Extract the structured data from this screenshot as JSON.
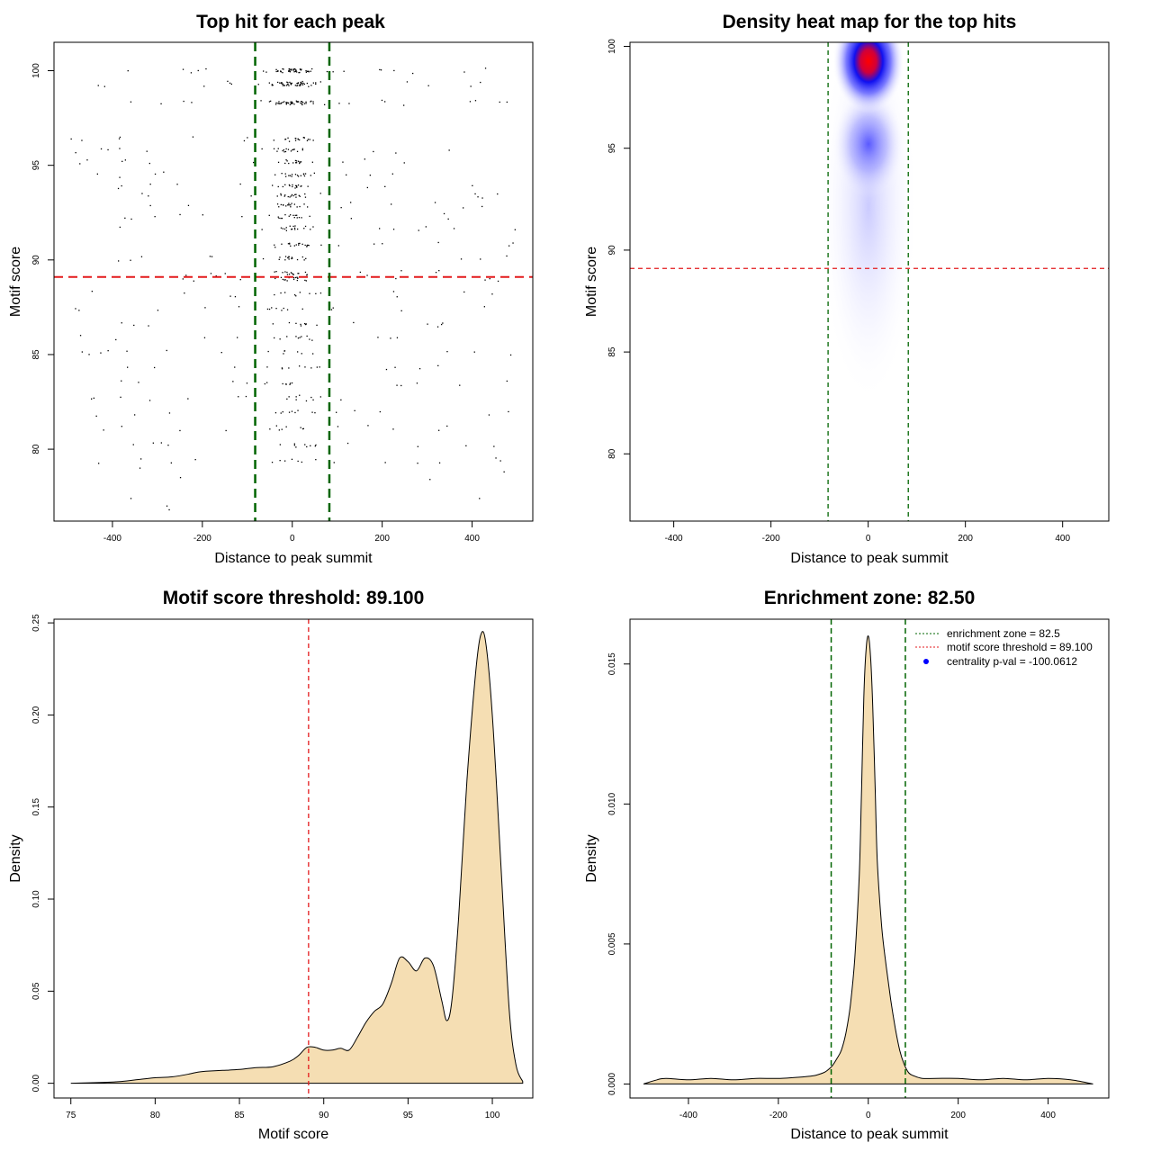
{
  "colors": {
    "threshold_line": "#e31a1c",
    "zone_line": "#006400",
    "density_fill": "#f5deb3",
    "heat_low": "#ffffff",
    "heat_mid": "#0000ff",
    "heat_high": "#ff0000",
    "point_color": "#000000",
    "legend_point": "#0000ff"
  },
  "chart_data": [
    {
      "id": "scatter",
      "type": "scatter",
      "title": "Top hit for each peak",
      "xlabel": "Distance to peak summit",
      "ylabel": "Motif score",
      "xlim": [
        -530,
        535
      ],
      "ylim": [
        76.2,
        101.5
      ],
      "xticks": [
        -400,
        -200,
        0,
        200,
        400
      ],
      "yticks": [
        80,
        85,
        90,
        95,
        100
      ],
      "hline": 89.1,
      "vlines": [
        -82.5,
        82.5
      ],
      "levels": [
        100,
        99.3,
        98.3,
        96.4,
        95.8,
        95.2,
        94.5,
        93.9,
        93.4,
        92.9,
        92.3,
        91.7,
        90.8,
        90.1,
        89.3,
        89.0,
        88.2,
        87.4,
        86.6,
        85.9,
        85.1,
        84.3,
        83.5,
        82.7,
        81.9,
        81.1,
        80.2,
        79.4
      ],
      "grid": false
    },
    {
      "id": "heatmap",
      "type": "heatmap",
      "title": "Density heat map for the top hits",
      "xlabel": "Distance to peak summit",
      "ylabel": "Motif score",
      "xlim": [
        -490,
        495
      ],
      "ylim": [
        76.7,
        100.2
      ],
      "xticks": [
        -400,
        -200,
        0,
        200,
        400
      ],
      "yticks": [
        80,
        85,
        90,
        95,
        100
      ],
      "hline": 89.1,
      "vlines": [
        -82.5,
        82.5
      ],
      "grid": false
    },
    {
      "id": "score_density",
      "type": "area",
      "title": "Motif score threshold: 89.100",
      "xlabel": "Motif score",
      "ylabel": "Density",
      "xlim": [
        74,
        102.4
      ],
      "ylim": [
        -0.008,
        0.252
      ],
      "xticks": [
        75,
        80,
        85,
        90,
        95,
        100
      ],
      "yticks": [
        0.0,
        0.05,
        0.1,
        0.15,
        0.2,
        0.25
      ],
      "ytick_labels": [
        "0.00",
        "0.05",
        "0.10",
        "0.15",
        "0.20",
        "0.25"
      ],
      "vline": 89.1,
      "x": [
        75,
        77,
        78,
        79,
        80,
        81,
        82,
        82.5,
        83,
        84,
        85,
        86,
        87,
        88,
        88.5,
        89,
        89.5,
        90,
        90.5,
        91,
        91.5,
        92,
        92.5,
        93,
        93.5,
        94,
        94.5,
        95,
        95.5,
        96,
        96.5,
        97,
        97.3,
        97.6,
        98,
        98.5,
        99,
        99.3,
        99.6,
        100,
        100.5,
        101,
        101.4,
        101.8
      ],
      "y": [
        0,
        0.0005,
        0.001,
        0.002,
        0.003,
        0.0035,
        0.005,
        0.006,
        0.0065,
        0.007,
        0.0075,
        0.0085,
        0.009,
        0.012,
        0.015,
        0.0195,
        0.0195,
        0.018,
        0.018,
        0.019,
        0.018,
        0.025,
        0.033,
        0.039,
        0.043,
        0.054,
        0.068,
        0.066,
        0.061,
        0.068,
        0.064,
        0.045,
        0.034,
        0.045,
        0.09,
        0.165,
        0.222,
        0.243,
        0.24,
        0.2,
        0.12,
        0.04,
        0.01,
        0.001
      ],
      "grid": false
    },
    {
      "id": "distance_density",
      "type": "area",
      "title": "Enrichment zone: 82.50",
      "xlabel": "Distance to peak summit",
      "ylabel": "Density",
      "xlim": [
        -530,
        535
      ],
      "ylim": [
        -0.0005,
        0.0166
      ],
      "xticks": [
        -400,
        -200,
        0,
        200,
        400
      ],
      "yticks": [
        0.0,
        0.005,
        0.01,
        0.015
      ],
      "ytick_labels": [
        "0.000",
        "0.005",
        "0.010",
        "0.015"
      ],
      "vlines": [
        -82.5,
        82.5
      ],
      "legend": {
        "position": "top-right",
        "entries": [
          {
            "label": "enrichment zone = 82.5",
            "style": "green-dotted"
          },
          {
            "label": "motif score threshold = 89.100",
            "style": "red-dotted"
          },
          {
            "label": "centrality p-val = -100.0612",
            "style": "blue-point"
          }
        ]
      },
      "x": [
        -500,
        -470,
        -450,
        -400,
        -350,
        -300,
        -250,
        -200,
        -150,
        -120,
        -100,
        -90,
        -80,
        -70,
        -60,
        -50,
        -40,
        -30,
        -20,
        -15,
        -10,
        -5,
        0,
        5,
        10,
        15,
        20,
        30,
        40,
        50,
        60,
        70,
        80,
        90,
        100,
        120,
        150,
        200,
        250,
        300,
        350,
        400,
        450,
        500
      ],
      "y": [
        0,
        0.00015,
        0.0002,
        0.00015,
        0.0002,
        0.00015,
        0.0002,
        0.0002,
        0.00025,
        0.0003,
        0.0004,
        0.0005,
        0.00065,
        0.0009,
        0.0012,
        0.0018,
        0.0028,
        0.0045,
        0.0075,
        0.0105,
        0.0138,
        0.0155,
        0.016,
        0.0153,
        0.0135,
        0.0108,
        0.008,
        0.0056,
        0.0042,
        0.003,
        0.002,
        0.0012,
        0.0007,
        0.0004,
        0.0003,
        0.0002,
        0.0002,
        0.0002,
        0.00015,
        0.0002,
        0.00015,
        0.0002,
        0.00015,
        0
      ],
      "grid": false
    }
  ]
}
